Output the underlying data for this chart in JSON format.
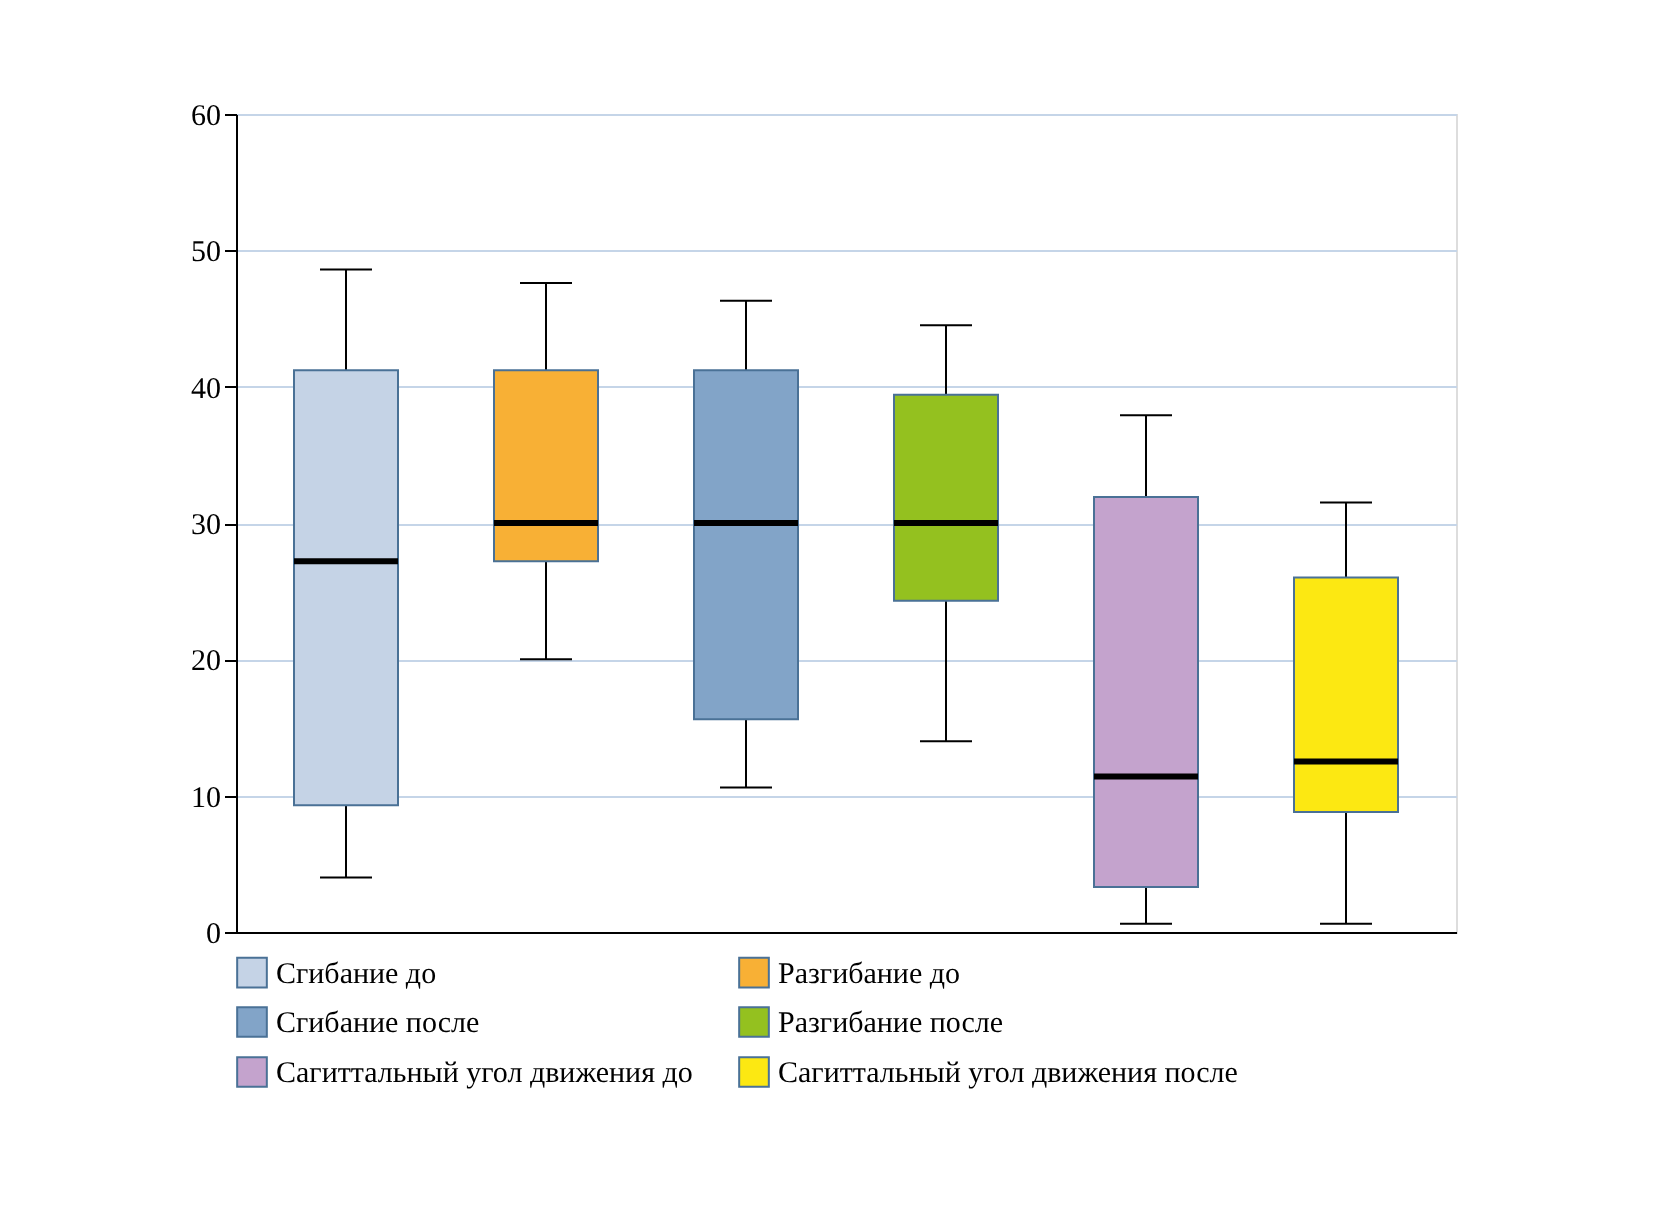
{
  "chart_data": {
    "type": "box",
    "categories": [
      null,
      null,
      null,
      null,
      null,
      null
    ],
    "ylim": [
      0,
      60
    ],
    "yticks": [
      0,
      10,
      20,
      30,
      40,
      50,
      60
    ],
    "grid": "y",
    "legend": "bottom",
    "tick_labels": "y",
    "series": [
      {
        "name": "Сгибание до",
        "color": "#c5d3e6",
        "boxes": [
          {
            "low": 4,
            "q1": 9.3,
            "median": 27.2,
            "q3": 41.2,
            "high": 48.6
          },
          null,
          null,
          null,
          null,
          null
        ]
      },
      {
        "name": "Разгибание до",
        "color": "#f8b035",
        "boxes": [
          null,
          {
            "low": 20,
            "q1": 27.2,
            "median": 30,
            "q3": 41.2,
            "high": 47.6
          },
          null,
          null,
          null,
          null
        ]
      },
      {
        "name": "Сгибание после",
        "color": "#82a4c8",
        "boxes": [
          null,
          null,
          {
            "low": 10.6,
            "q1": 15.6,
            "median": 30,
            "q3": 41.2,
            "high": 46.3
          },
          null,
          null,
          null
        ]
      },
      {
        "name": "Разгибание после",
        "color": "#94c11f",
        "boxes": [
          null,
          null,
          null,
          {
            "low": 14,
            "q1": 24.3,
            "median": 30,
            "q3": 39.4,
            "high": 44.5
          },
          null,
          null
        ]
      },
      {
        "name": "Сагиттальный угол движения до",
        "color": "#c4a3cd",
        "boxes": [
          null,
          null,
          null,
          null,
          {
            "low": 0.6,
            "q1": 3.3,
            "median": 11.4,
            "q3": 31.9,
            "high": 37.9
          },
          null
        ]
      },
      {
        "name": "Сагиттальный угол движения после",
        "color": "#fce812",
        "boxes": [
          null,
          null,
          null,
          null,
          null,
          {
            "low": 0.6,
            "q1": 8.8,
            "median": 12.5,
            "q3": 26,
            "high": 31.5
          }
        ]
      }
    ]
  }
}
